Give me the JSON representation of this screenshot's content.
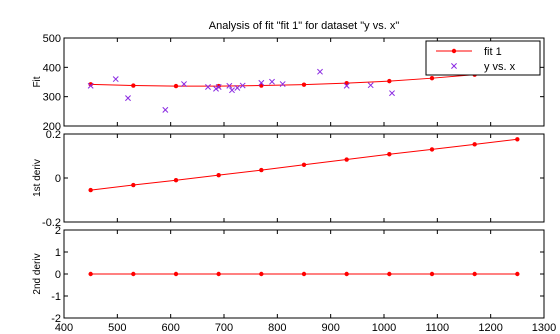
{
  "chart_data": [
    {
      "type": "scatter",
      "title": "Analysis of fit \"fit 1\" for dataset \"y vs. x\"",
      "ylabel": "Fit",
      "xlim": [
        400,
        1300
      ],
      "ylim": [
        200,
        500
      ],
      "yticks": [
        "200",
        "300",
        "400",
        "500"
      ],
      "legend": {
        "placement": "top-right",
        "entries": [
          "fit 1",
          "y vs. x"
        ]
      },
      "series": [
        {
          "name": "fit 1",
          "type": "line",
          "color": "#ff0000",
          "x": [
            450,
            530,
            610,
            690,
            770,
            850,
            930,
            1010,
            1090,
            1170,
            1250
          ],
          "y": [
            342,
            338,
            336,
            336,
            338,
            341,
            346,
            353,
            363,
            375,
            391
          ]
        },
        {
          "name": "y vs. x",
          "type": "scatter",
          "color": "#8b2be2",
          "x": [
            450,
            497,
            520,
            590,
            625,
            670,
            685,
            690,
            710,
            715,
            725,
            735,
            770,
            790,
            810,
            880,
            930,
            975,
            1015,
            1160
          ],
          "y": [
            337,
            360,
            295,
            255,
            343,
            333,
            327,
            333,
            337,
            322,
            330,
            338,
            347,
            351,
            343,
            385,
            337,
            339,
            312,
            393
          ]
        }
      ]
    },
    {
      "type": "line",
      "ylabel": "1st deriv",
      "xlim": [
        400,
        1300
      ],
      "ylim": [
        -0.2,
        0.2
      ],
      "yticks": [
        "-0.2",
        "0",
        "0.2"
      ],
      "series": [
        {
          "color": "#ff0000",
          "x": [
            450,
            530,
            610,
            690,
            770,
            850,
            930,
            1010,
            1090,
            1170,
            1250
          ],
          "y": [
            -0.055,
            -0.032,
            -0.01,
            0.013,
            0.036,
            0.06,
            0.084,
            0.108,
            0.13,
            0.153,
            0.176
          ]
        }
      ]
    },
    {
      "type": "line",
      "ylabel": "2nd deriv",
      "xlim": [
        400,
        1300
      ],
      "ylim": [
        -2,
        2
      ],
      "yticks": [
        "-2",
        "-1",
        "0",
        "1",
        "2"
      ],
      "xticks": [
        "400",
        "500",
        "600",
        "700",
        "800",
        "900",
        "1000",
        "1100",
        "1200",
        "1300"
      ],
      "series": [
        {
          "color": "#ff0000",
          "x": [
            450,
            530,
            610,
            690,
            770,
            850,
            930,
            1010,
            1090,
            1170,
            1250
          ],
          "y": [
            0,
            0,
            0,
            0,
            0,
            0,
            0,
            0,
            0,
            0,
            0
          ]
        }
      ]
    }
  ]
}
